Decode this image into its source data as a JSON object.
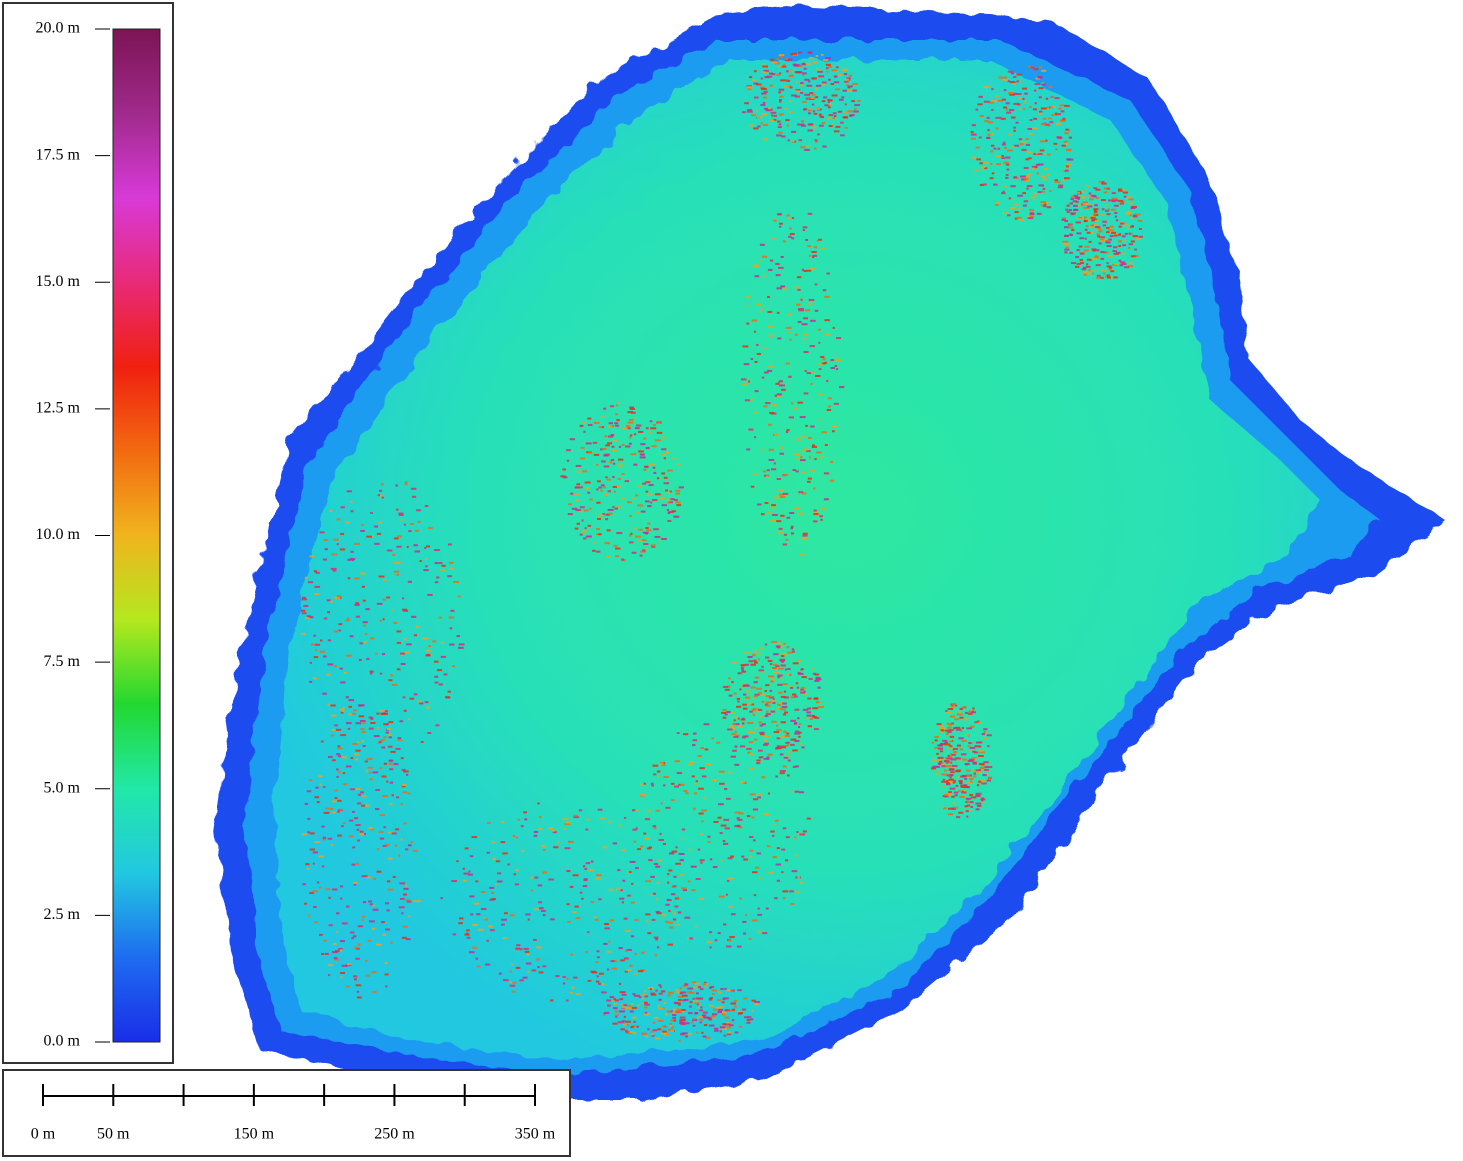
{
  "legend": {
    "range": [
      0,
      20
    ],
    "ticks": [
      {
        "value": 20,
        "label": "20.0 m"
      },
      {
        "value": 17.5,
        "label": "17.5 m"
      },
      {
        "value": 15,
        "label": "15.0 m"
      },
      {
        "value": 12.5,
        "label": "12.5 m"
      },
      {
        "value": 10,
        "label": "10.0 m"
      },
      {
        "value": 7.5,
        "label": "7.5 m"
      },
      {
        "value": 5,
        "label": "5.0 m"
      },
      {
        "value": 2.5,
        "label": "2.5 m"
      },
      {
        "value": 0,
        "label": "0.0 m"
      }
    ],
    "colors": [
      "#1a2ee8",
      "#1e6cf0",
      "#22c8e0",
      "#22e8a8",
      "#22d830",
      "#b4e81e",
      "#f0b41e",
      "#f26a10",
      "#f02010",
      "#e82a78",
      "#d83ad8",
      "#a02a8c",
      "#7c1454"
    ]
  },
  "scale_bar": {
    "range": [
      0,
      350
    ],
    "ticks": [
      0,
      50,
      100,
      150,
      200,
      250,
      300,
      350
    ],
    "labels": [
      {
        "value": 0,
        "label": "0 m"
      },
      {
        "value": 50,
        "label": "50 m"
      },
      {
        "value": 150,
        "label": "150 m"
      },
      {
        "value": 250,
        "label": "250 m"
      },
      {
        "value": 350,
        "label": "350 m"
      }
    ]
  }
}
